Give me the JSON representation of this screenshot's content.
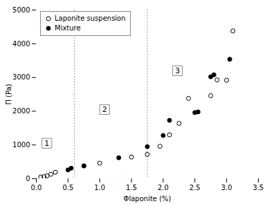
{
  "chart_data": {
    "type": "scatter",
    "xlabel": "Φlaponite (%)",
    "ylabel": "Π (Pa)",
    "xlim": [
      0,
      3.5
    ],
    "ylim": [
      0,
      5000
    ],
    "xticks": [
      {
        "value": 0,
        "label": "0.0"
      },
      0.5,
      {
        "value": 1.0,
        "label": "1.0"
      },
      1.5,
      {
        "value": 2.0,
        "label": "2.0"
      },
      2.5,
      {
        "value": 3.0,
        "label": "3.0"
      },
      3.5
    ],
    "yticks": [
      0,
      1000,
      2000,
      3000,
      4000,
      5000
    ],
    "legend": "upper left",
    "series": [
      {
        "name": "Laponite suspension",
        "color": "black",
        "marker": "circle_open",
        "x": [
          0.07,
          0.12,
          0.17,
          0.23,
          0.3,
          0.75,
          1.0,
          1.5,
          1.75,
          1.95,
          2.1,
          2.25,
          2.4,
          2.75,
          2.85,
          3.0,
          3.1
        ],
        "values": [
          50,
          60,
          85,
          130,
          190,
          380,
          460,
          640,
          720,
          960,
          1300,
          1640,
          2380,
          2460,
          2930,
          2920,
          4380
        ]
      },
      {
        "name": "Mixture",
        "color": "black",
        "marker": "circle",
        "x": [
          0.5,
          0.55,
          0.75,
          1.3,
          1.75,
          2.0,
          2.1,
          2.5,
          2.55,
          2.75,
          2.8,
          3.05
        ],
        "values": [
          260,
          310,
          380,
          620,
          950,
          1280,
          1730,
          1960,
          1980,
          3020,
          3080,
          3540
        ]
      }
    ],
    "vlines": [
      0.6,
      1.75
    ],
    "annotations": [
      {
        "x": 0.09,
        "y": 1050,
        "text": "1"
      },
      {
        "x": 1.0,
        "y": 2050,
        "text": "2"
      },
      {
        "x": 2.15,
        "y": 3200,
        "text": "3"
      }
    ]
  }
}
